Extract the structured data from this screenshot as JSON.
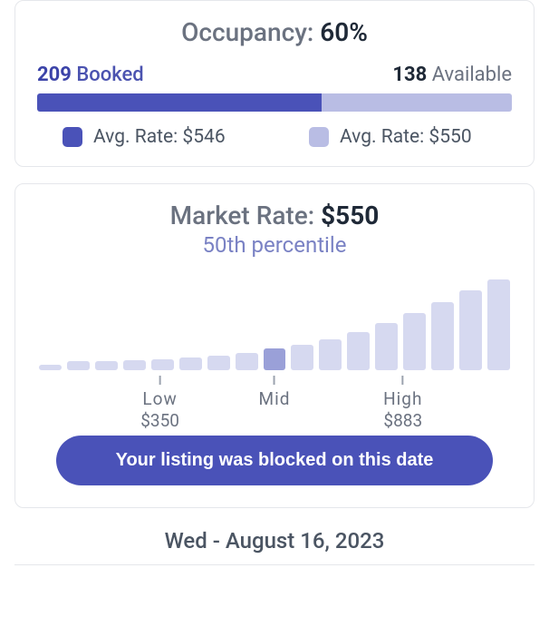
{
  "colors": {
    "booked": "#4a52b8",
    "available": "#b9bde4",
    "bar_default": "#d6d9f0",
    "bar_highlight": "#9aa0d8",
    "card_border": "#e5e7eb",
    "text_muted": "#6b7280",
    "text_dark": "#1f2937",
    "text_accent": "#7a82c4"
  },
  "occupancy": {
    "title_label": "Occupancy:",
    "title_value": "60%",
    "booked_count": "209",
    "booked_label": "Booked",
    "available_count": "138",
    "available_label": "Available",
    "bar": {
      "booked_pct": 60,
      "available_pct": 40
    },
    "legend_booked": "Avg. Rate: $546",
    "legend_available": "Avg. Rate: $550"
  },
  "market": {
    "title_label": "Market Rate:",
    "title_value": "$550",
    "subtitle": "50th percentile",
    "histogram": {
      "bar_width_ratio": 0.8,
      "highlight_index": 8,
      "values": [
        6,
        10,
        10,
        11,
        12,
        14,
        16,
        19,
        24,
        28,
        34,
        42,
        52,
        63,
        75,
        88,
        100
      ],
      "ylim": [
        0,
        100
      ]
    },
    "ticks": [
      {
        "pos_index": 3.9,
        "label": "Low",
        "value": "$350"
      },
      {
        "pos_index": 8,
        "label": "Mid",
        "value": ""
      },
      {
        "pos_index": 12.6,
        "label": "High",
        "value": "$883"
      }
    ],
    "pill_text": "Your listing was blocked on this date"
  },
  "date_line": "Wed - August 16, 2023"
}
